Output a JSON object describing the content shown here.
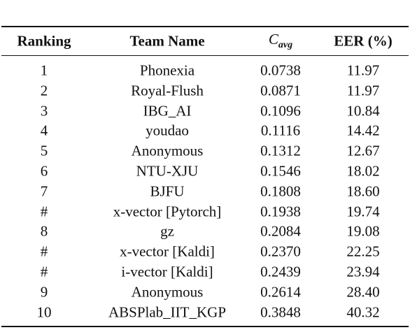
{
  "table": {
    "header": [
      "Ranking",
      "Team Name",
      {
        "main": "C",
        "sub": "avg"
      },
      "EER (%)"
    ],
    "rows": [
      [
        "1",
        "Phonexia",
        "0.0738",
        "11.97"
      ],
      [
        "2",
        "Royal-Flush",
        "0.0871",
        "11.97"
      ],
      [
        "3",
        "IBG_AI",
        "0.1096",
        "10.84"
      ],
      [
        "4",
        "youdao",
        "0.1116",
        "14.42"
      ],
      [
        "5",
        "Anonymous",
        "0.1312",
        "12.67"
      ],
      [
        "6",
        "NTU-XJU",
        "0.1546",
        "18.02"
      ],
      [
        "7",
        "BJFU",
        "0.1808",
        "18.60"
      ],
      [
        "#",
        "x-vector [Pytorch]",
        "0.1938",
        "19.74"
      ],
      [
        "8",
        "gz",
        "0.2084",
        "19.08"
      ],
      [
        "#",
        "x-vector [Kaldi]",
        "0.2370",
        "22.25"
      ],
      [
        "#",
        "i-vector [Kaldi]",
        "0.2439",
        "23.94"
      ],
      [
        "9",
        "Anonymous",
        "0.2614",
        "28.40"
      ],
      [
        "10",
        "ABSPlab_IIT_KGP",
        "0.3848",
        "40.32"
      ]
    ]
  }
}
